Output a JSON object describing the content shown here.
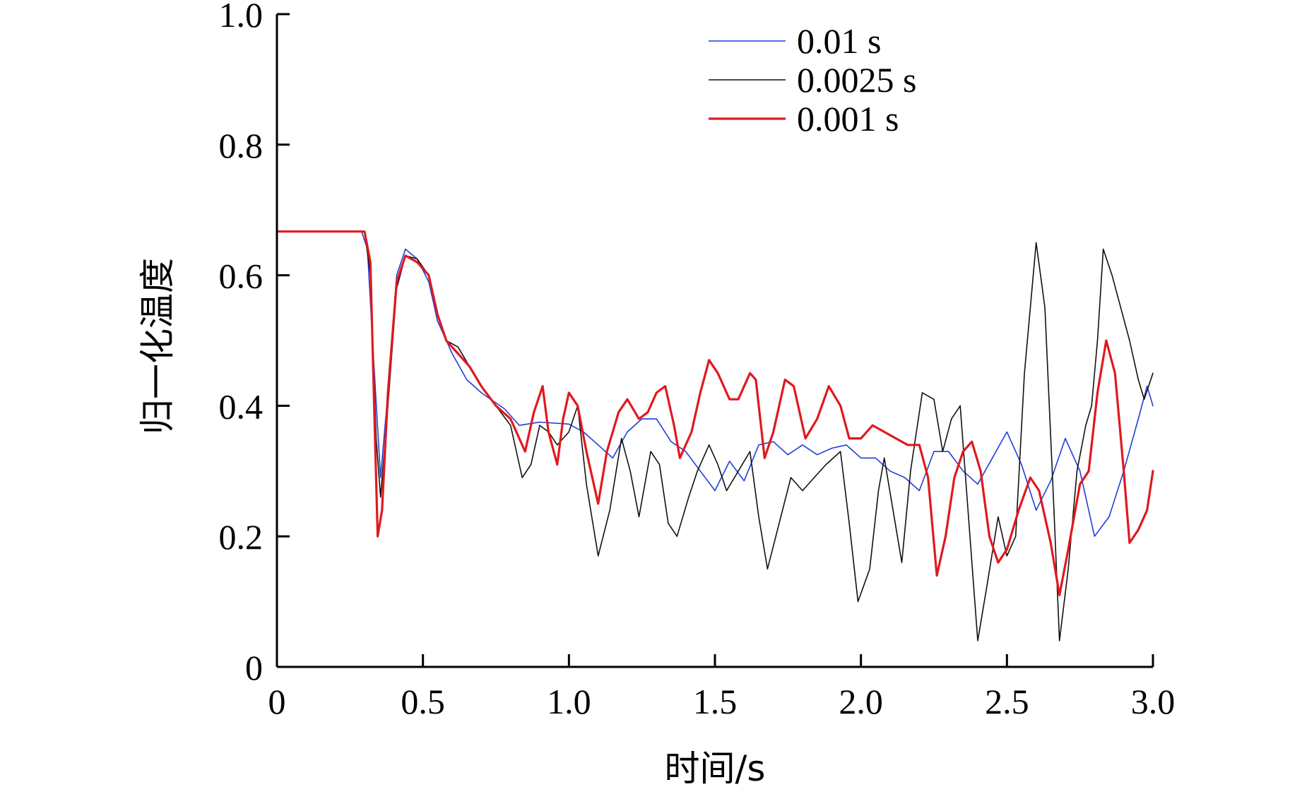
{
  "chart_data": {
    "type": "line",
    "title": "",
    "xlabel": "时间/s",
    "ylabel": "归一化温度",
    "xlim": [
      0,
      3.0
    ],
    "ylim": [
      0,
      1.0
    ],
    "x_ticks": [
      0,
      0.5,
      1.0,
      1.5,
      2.0,
      2.5,
      3.0
    ],
    "x_tick_labels": [
      "0",
      "0.5",
      "1.0",
      "1.5",
      "2.0",
      "2.5",
      "3.0"
    ],
    "y_ticks": [
      0,
      0.2,
      0.4,
      0.6,
      0.8,
      1.0
    ],
    "y_tick_labels": [
      "0",
      "0.2",
      "0.4",
      "0.6",
      "0.8",
      "1.0"
    ],
    "grid": false,
    "legend_position": "top-right",
    "series": [
      {
        "name": "0.01 s",
        "color": "#1f3fd6",
        "points": [
          [
            0,
            0.667
          ],
          [
            0.29,
            0.667
          ],
          [
            0.31,
            0.64
          ],
          [
            0.33,
            0.48
          ],
          [
            0.355,
            0.29
          ],
          [
            0.38,
            0.42
          ],
          [
            0.41,
            0.6
          ],
          [
            0.44,
            0.64
          ],
          [
            0.48,
            0.625
          ],
          [
            0.52,
            0.59
          ],
          [
            0.55,
            0.53
          ],
          [
            0.6,
            0.48
          ],
          [
            0.65,
            0.44
          ],
          [
            0.7,
            0.42
          ],
          [
            0.78,
            0.395
          ],
          [
            0.83,
            0.37
          ],
          [
            0.9,
            0.375
          ],
          [
            1.0,
            0.372
          ],
          [
            1.05,
            0.36
          ],
          [
            1.1,
            0.34
          ],
          [
            1.15,
            0.32
          ],
          [
            1.2,
            0.36
          ],
          [
            1.25,
            0.38
          ],
          [
            1.3,
            0.38
          ],
          [
            1.35,
            0.345
          ],
          [
            1.4,
            0.33
          ],
          [
            1.45,
            0.3
          ],
          [
            1.5,
            0.27
          ],
          [
            1.55,
            0.315
          ],
          [
            1.6,
            0.285
          ],
          [
            1.65,
            0.34
          ],
          [
            1.7,
            0.345
          ],
          [
            1.75,
            0.325
          ],
          [
            1.8,
            0.34
          ],
          [
            1.85,
            0.325
          ],
          [
            1.9,
            0.335
          ],
          [
            1.95,
            0.34
          ],
          [
            2.0,
            0.32
          ],
          [
            2.05,
            0.32
          ],
          [
            2.1,
            0.3
          ],
          [
            2.15,
            0.29
          ],
          [
            2.2,
            0.27
          ],
          [
            2.25,
            0.33
          ],
          [
            2.3,
            0.33
          ],
          [
            2.35,
            0.3
          ],
          [
            2.4,
            0.28
          ],
          [
            2.45,
            0.32
          ],
          [
            2.5,
            0.36
          ],
          [
            2.55,
            0.31
          ],
          [
            2.6,
            0.24
          ],
          [
            2.65,
            0.285
          ],
          [
            2.7,
            0.35
          ],
          [
            2.75,
            0.3
          ],
          [
            2.8,
            0.2
          ],
          [
            2.85,
            0.23
          ],
          [
            2.9,
            0.3
          ],
          [
            2.95,
            0.38
          ],
          [
            2.98,
            0.43
          ],
          [
            3.0,
            0.4
          ]
        ]
      },
      {
        "name": "0.0025 s",
        "color": "#111111",
        "points": [
          [
            0,
            0.667
          ],
          [
            0.3,
            0.667
          ],
          [
            0.32,
            0.6
          ],
          [
            0.34,
            0.35
          ],
          [
            0.355,
            0.26
          ],
          [
            0.38,
            0.4
          ],
          [
            0.41,
            0.58
          ],
          [
            0.44,
            0.63
          ],
          [
            0.48,
            0.625
          ],
          [
            0.52,
            0.6
          ],
          [
            0.55,
            0.54
          ],
          [
            0.58,
            0.5
          ],
          [
            0.62,
            0.49
          ],
          [
            0.66,
            0.46
          ],
          [
            0.7,
            0.43
          ],
          [
            0.75,
            0.4
          ],
          [
            0.8,
            0.37
          ],
          [
            0.84,
            0.29
          ],
          [
            0.87,
            0.31
          ],
          [
            0.9,
            0.37
          ],
          [
            0.93,
            0.36
          ],
          [
            0.96,
            0.34
          ],
          [
            1.0,
            0.36
          ],
          [
            1.03,
            0.4
          ],
          [
            1.06,
            0.28
          ],
          [
            1.1,
            0.17
          ],
          [
            1.14,
            0.24
          ],
          [
            1.18,
            0.35
          ],
          [
            1.21,
            0.3
          ],
          [
            1.24,
            0.23
          ],
          [
            1.28,
            0.33
          ],
          [
            1.31,
            0.31
          ],
          [
            1.34,
            0.22
          ],
          [
            1.37,
            0.2
          ],
          [
            1.41,
            0.26
          ],
          [
            1.44,
            0.3
          ],
          [
            1.48,
            0.34
          ],
          [
            1.51,
            0.31
          ],
          [
            1.54,
            0.27
          ],
          [
            1.58,
            0.3
          ],
          [
            1.62,
            0.33
          ],
          [
            1.65,
            0.23
          ],
          [
            1.68,
            0.15
          ],
          [
            1.72,
            0.22
          ],
          [
            1.76,
            0.29
          ],
          [
            1.8,
            0.27
          ],
          [
            1.84,
            0.29
          ],
          [
            1.88,
            0.31
          ],
          [
            1.93,
            0.33
          ],
          [
            1.96,
            0.22
          ],
          [
            1.99,
            0.1
          ],
          [
            2.03,
            0.15
          ],
          [
            2.06,
            0.27
          ],
          [
            2.08,
            0.32
          ],
          [
            2.11,
            0.24
          ],
          [
            2.14,
            0.16
          ],
          [
            2.17,
            0.3
          ],
          [
            2.21,
            0.42
          ],
          [
            2.25,
            0.41
          ],
          [
            2.28,
            0.33
          ],
          [
            2.31,
            0.38
          ],
          [
            2.34,
            0.4
          ],
          [
            2.37,
            0.22
          ],
          [
            2.4,
            0.04
          ],
          [
            2.43,
            0.12
          ],
          [
            2.47,
            0.23
          ],
          [
            2.5,
            0.17
          ],
          [
            2.53,
            0.2
          ],
          [
            2.56,
            0.45
          ],
          [
            2.6,
            0.65
          ],
          [
            2.63,
            0.55
          ],
          [
            2.66,
            0.25
          ],
          [
            2.68,
            0.04
          ],
          [
            2.71,
            0.15
          ],
          [
            2.74,
            0.3
          ],
          [
            2.77,
            0.37
          ],
          [
            2.79,
            0.4
          ],
          [
            2.81,
            0.5
          ],
          [
            2.83,
            0.64
          ],
          [
            2.86,
            0.6
          ],
          [
            2.89,
            0.55
          ],
          [
            2.92,
            0.5
          ],
          [
            2.95,
            0.44
          ],
          [
            2.97,
            0.41
          ],
          [
            3.0,
            0.45
          ]
        ]
      },
      {
        "name": "0.001 s",
        "color": "#e0191e",
        "points": [
          [
            0,
            0.667
          ],
          [
            0.3,
            0.667
          ],
          [
            0.32,
            0.62
          ],
          [
            0.33,
            0.45
          ],
          [
            0.345,
            0.2
          ],
          [
            0.36,
            0.24
          ],
          [
            0.38,
            0.42
          ],
          [
            0.41,
            0.59
          ],
          [
            0.44,
            0.63
          ],
          [
            0.48,
            0.62
          ],
          [
            0.52,
            0.6
          ],
          [
            0.55,
            0.54
          ],
          [
            0.58,
            0.5
          ],
          [
            0.62,
            0.48
          ],
          [
            0.66,
            0.46
          ],
          [
            0.7,
            0.43
          ],
          [
            0.75,
            0.4
          ],
          [
            0.8,
            0.38
          ],
          [
            0.85,
            0.33
          ],
          [
            0.88,
            0.39
          ],
          [
            0.91,
            0.43
          ],
          [
            0.93,
            0.36
          ],
          [
            0.96,
            0.31
          ],
          [
            0.98,
            0.38
          ],
          [
            1.0,
            0.42
          ],
          [
            1.03,
            0.4
          ],
          [
            1.06,
            0.33
          ],
          [
            1.1,
            0.25
          ],
          [
            1.13,
            0.33
          ],
          [
            1.17,
            0.39
          ],
          [
            1.2,
            0.41
          ],
          [
            1.24,
            0.38
          ],
          [
            1.27,
            0.39
          ],
          [
            1.3,
            0.42
          ],
          [
            1.33,
            0.43
          ],
          [
            1.36,
            0.37
          ],
          [
            1.38,
            0.32
          ],
          [
            1.42,
            0.36
          ],
          [
            1.45,
            0.42
          ],
          [
            1.48,
            0.47
          ],
          [
            1.51,
            0.45
          ],
          [
            1.55,
            0.41
          ],
          [
            1.58,
            0.41
          ],
          [
            1.62,
            0.45
          ],
          [
            1.64,
            0.44
          ],
          [
            1.67,
            0.32
          ],
          [
            1.7,
            0.36
          ],
          [
            1.74,
            0.44
          ],
          [
            1.77,
            0.43
          ],
          [
            1.81,
            0.35
          ],
          [
            1.85,
            0.38
          ],
          [
            1.89,
            0.43
          ],
          [
            1.93,
            0.4
          ],
          [
            1.96,
            0.35
          ],
          [
            2.0,
            0.35
          ],
          [
            2.04,
            0.37
          ],
          [
            2.08,
            0.36
          ],
          [
            2.12,
            0.35
          ],
          [
            2.16,
            0.34
          ],
          [
            2.2,
            0.34
          ],
          [
            2.23,
            0.29
          ],
          [
            2.26,
            0.14
          ],
          [
            2.29,
            0.2
          ],
          [
            2.32,
            0.29
          ],
          [
            2.35,
            0.33
          ],
          [
            2.38,
            0.345
          ],
          [
            2.41,
            0.3
          ],
          [
            2.44,
            0.2
          ],
          [
            2.47,
            0.16
          ],
          [
            2.5,
            0.18
          ],
          [
            2.54,
            0.24
          ],
          [
            2.58,
            0.29
          ],
          [
            2.61,
            0.27
          ],
          [
            2.65,
            0.19
          ],
          [
            2.68,
            0.11
          ],
          [
            2.71,
            0.18
          ],
          [
            2.75,
            0.28
          ],
          [
            2.78,
            0.3
          ],
          [
            2.81,
            0.42
          ],
          [
            2.84,
            0.5
          ],
          [
            2.87,
            0.45
          ],
          [
            2.9,
            0.3
          ],
          [
            2.92,
            0.19
          ],
          [
            2.95,
            0.21
          ],
          [
            2.98,
            0.24
          ],
          [
            3.0,
            0.3
          ]
        ]
      }
    ]
  }
}
